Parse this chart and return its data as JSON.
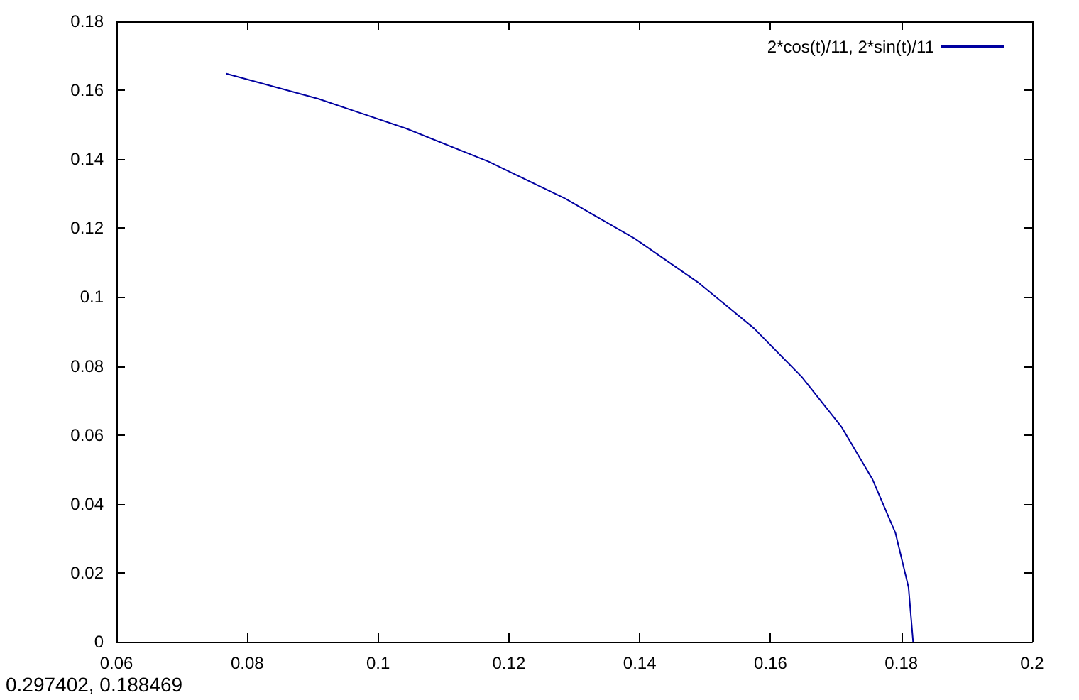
{
  "chart_data": {
    "type": "line",
    "x": [
      0.1818,
      0.1811,
      0.1791,
      0.1756,
      0.1709,
      0.1648,
      0.1575,
      0.1489,
      0.1393,
      0.1286,
      0.1169,
      0.1043,
      0.0909,
      0.0768
    ],
    "series": [
      {
        "name": "2*cos(t)/11, 2*sin(t)/11",
        "color": "#0000a0",
        "values": [
          0,
          0.0158,
          0.0316,
          0.0471,
          0.0622,
          0.0768,
          0.0909,
          0.1043,
          0.1169,
          0.1286,
          0.1393,
          0.1489,
          0.1575,
          0.1648
        ]
      }
    ],
    "xlim": [
      0.06,
      0.2
    ],
    "xticks": [
      0.06,
      0.08,
      0.1,
      0.12,
      0.14,
      0.16,
      0.18,
      0.2
    ],
    "ylim": [
      0,
      0.18
    ],
    "yticks": [
      0,
      0.02,
      0.04,
      0.06,
      0.08,
      0.1,
      0.12,
      0.14,
      0.16,
      0.18
    ],
    "legend": "top right",
    "grid": false,
    "marker": "none",
    "line_style": "solid",
    "annotations": [
      "0.297402, 0.188469"
    ]
  }
}
